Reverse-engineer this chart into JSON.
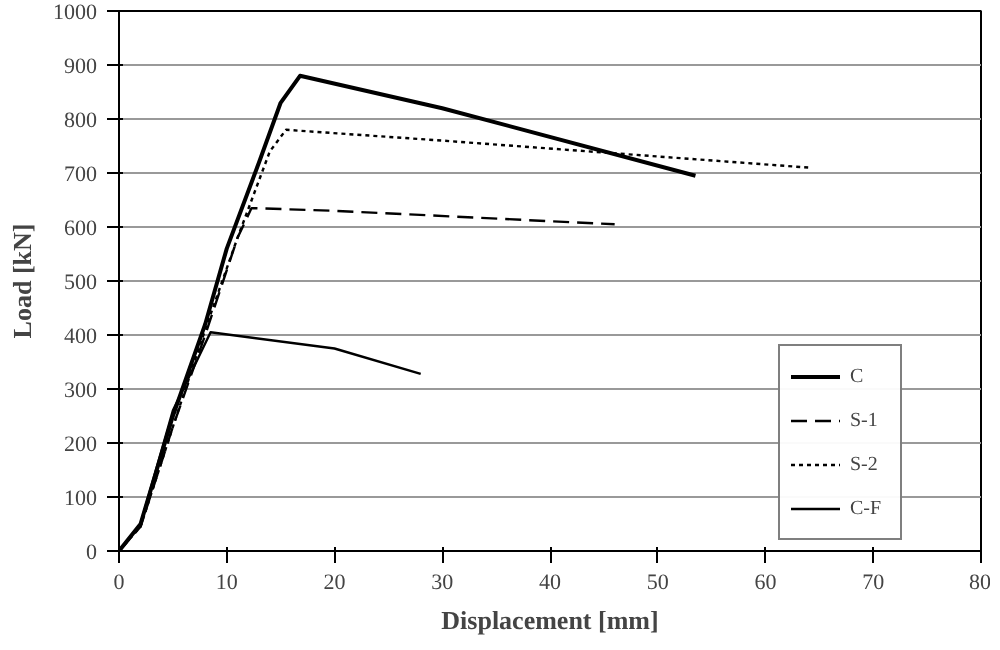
{
  "chart_data": {
    "type": "line",
    "xlabel": "Displacement [mm]",
    "ylabel": "Load [kN]",
    "xlim": [
      0,
      80
    ],
    "ylim": [
      0,
      1000
    ],
    "xticks": [
      0,
      10,
      20,
      30,
      40,
      50,
      60,
      70,
      80
    ],
    "yticks": [
      0,
      100,
      200,
      300,
      400,
      500,
      600,
      700,
      800,
      900,
      1000
    ],
    "grid": "y",
    "legend": "right",
    "marker": "none",
    "series": [
      {
        "name": "C",
        "color": "#000000",
        "line_style": "solid",
        "x": [
          0,
          2,
          5,
          8,
          10,
          13,
          15,
          16.8,
          30,
          53.5
        ],
        "values": [
          0,
          50,
          250,
          420,
          560,
          720,
          830,
          880,
          820,
          695
        ]
      },
      {
        "name": "S-1",
        "color": "#000000",
        "line_style": "dashed",
        "x": [
          0,
          2,
          5,
          8,
          11,
          12.3,
          20,
          46
        ],
        "values": [
          0,
          45,
          230,
          400,
          580,
          635,
          630,
          605
        ]
      },
      {
        "name": "S-2",
        "color": "#000000",
        "line_style": "dotted",
        "x": [
          0,
          2,
          5,
          8,
          11,
          14,
          15.5,
          30,
          64
        ],
        "values": [
          0,
          45,
          230,
          410,
          580,
          740,
          780,
          760,
          710
        ]
      },
      {
        "name": "C-F",
        "color": "#000000",
        "line_style": "solid",
        "x": [
          0,
          2,
          5,
          8.5,
          20,
          28
        ],
        "values": [
          0,
          50,
          260,
          405,
          375,
          328
        ]
      }
    ]
  }
}
